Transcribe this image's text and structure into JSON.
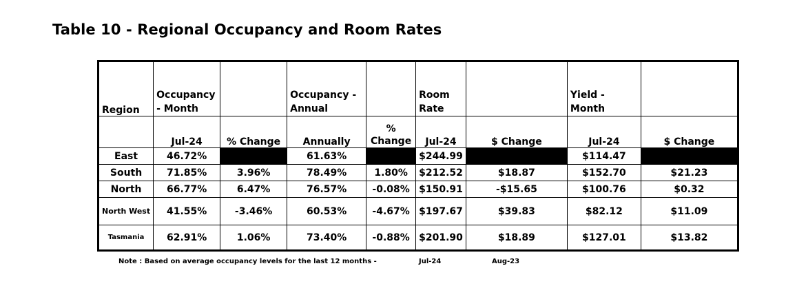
{
  "title": "Table 10 - Regional Occupancy and Room Rates",
  "headers": {
    "region": "Region",
    "occ_month": "Occupancy - Month",
    "occ_annual": "Occupancy - Annual",
    "room_rate": "Room Rate",
    "yield_month": "Yield - Month"
  },
  "subheaders": [
    "Jul-24",
    "% Change",
    "Annually",
    "% Change",
    "Jul-24",
    "$ Change",
    "Jul-24",
    "$ Change"
  ],
  "rows": [
    {
      "region": "East",
      "occ": "46.72%",
      "occ_chg": "",
      "annual": "61.63%",
      "annual_chg": "",
      "rate": "$244.99",
      "rate_chg": "",
      "yield": "$114.47",
      "yield_chg": ""
    },
    {
      "region": "South",
      "occ": "71.85%",
      "occ_chg": "3.96%",
      "annual": "78.49%",
      "annual_chg": "1.80%",
      "rate": "$212.52",
      "rate_chg": "$18.87",
      "yield": "$152.70",
      "yield_chg": "$21.23"
    },
    {
      "region": "North",
      "occ": "66.77%",
      "occ_chg": "6.47%",
      "annual": "76.57%",
      "annual_chg": "-0.08%",
      "rate": "$150.91",
      "rate_chg": "-$15.65",
      "yield": "$100.76",
      "yield_chg": "$0.32"
    },
    {
      "region": "North West",
      "occ": "41.55%",
      "occ_chg": "-3.46%",
      "annual": "60.53%",
      "annual_chg": "-4.67%",
      "rate": "$197.67",
      "rate_chg": "$39.83",
      "yield": "$82.12",
      "yield_chg": "$11.09"
    },
    {
      "region": "Tasmania",
      "occ": "62.91%",
      "occ_chg": "1.06%",
      "annual": "73.40%",
      "annual_chg": "-0.88%",
      "rate": "$201.90",
      "rate_chg": "$18.89",
      "yield": "$127.01",
      "yield_chg": "$13.82"
    }
  ],
  "note": {
    "text": "Note : Based on average occupancy levels for the last 12 months -",
    "from": "Jul-24",
    "to": "Aug-23"
  }
}
